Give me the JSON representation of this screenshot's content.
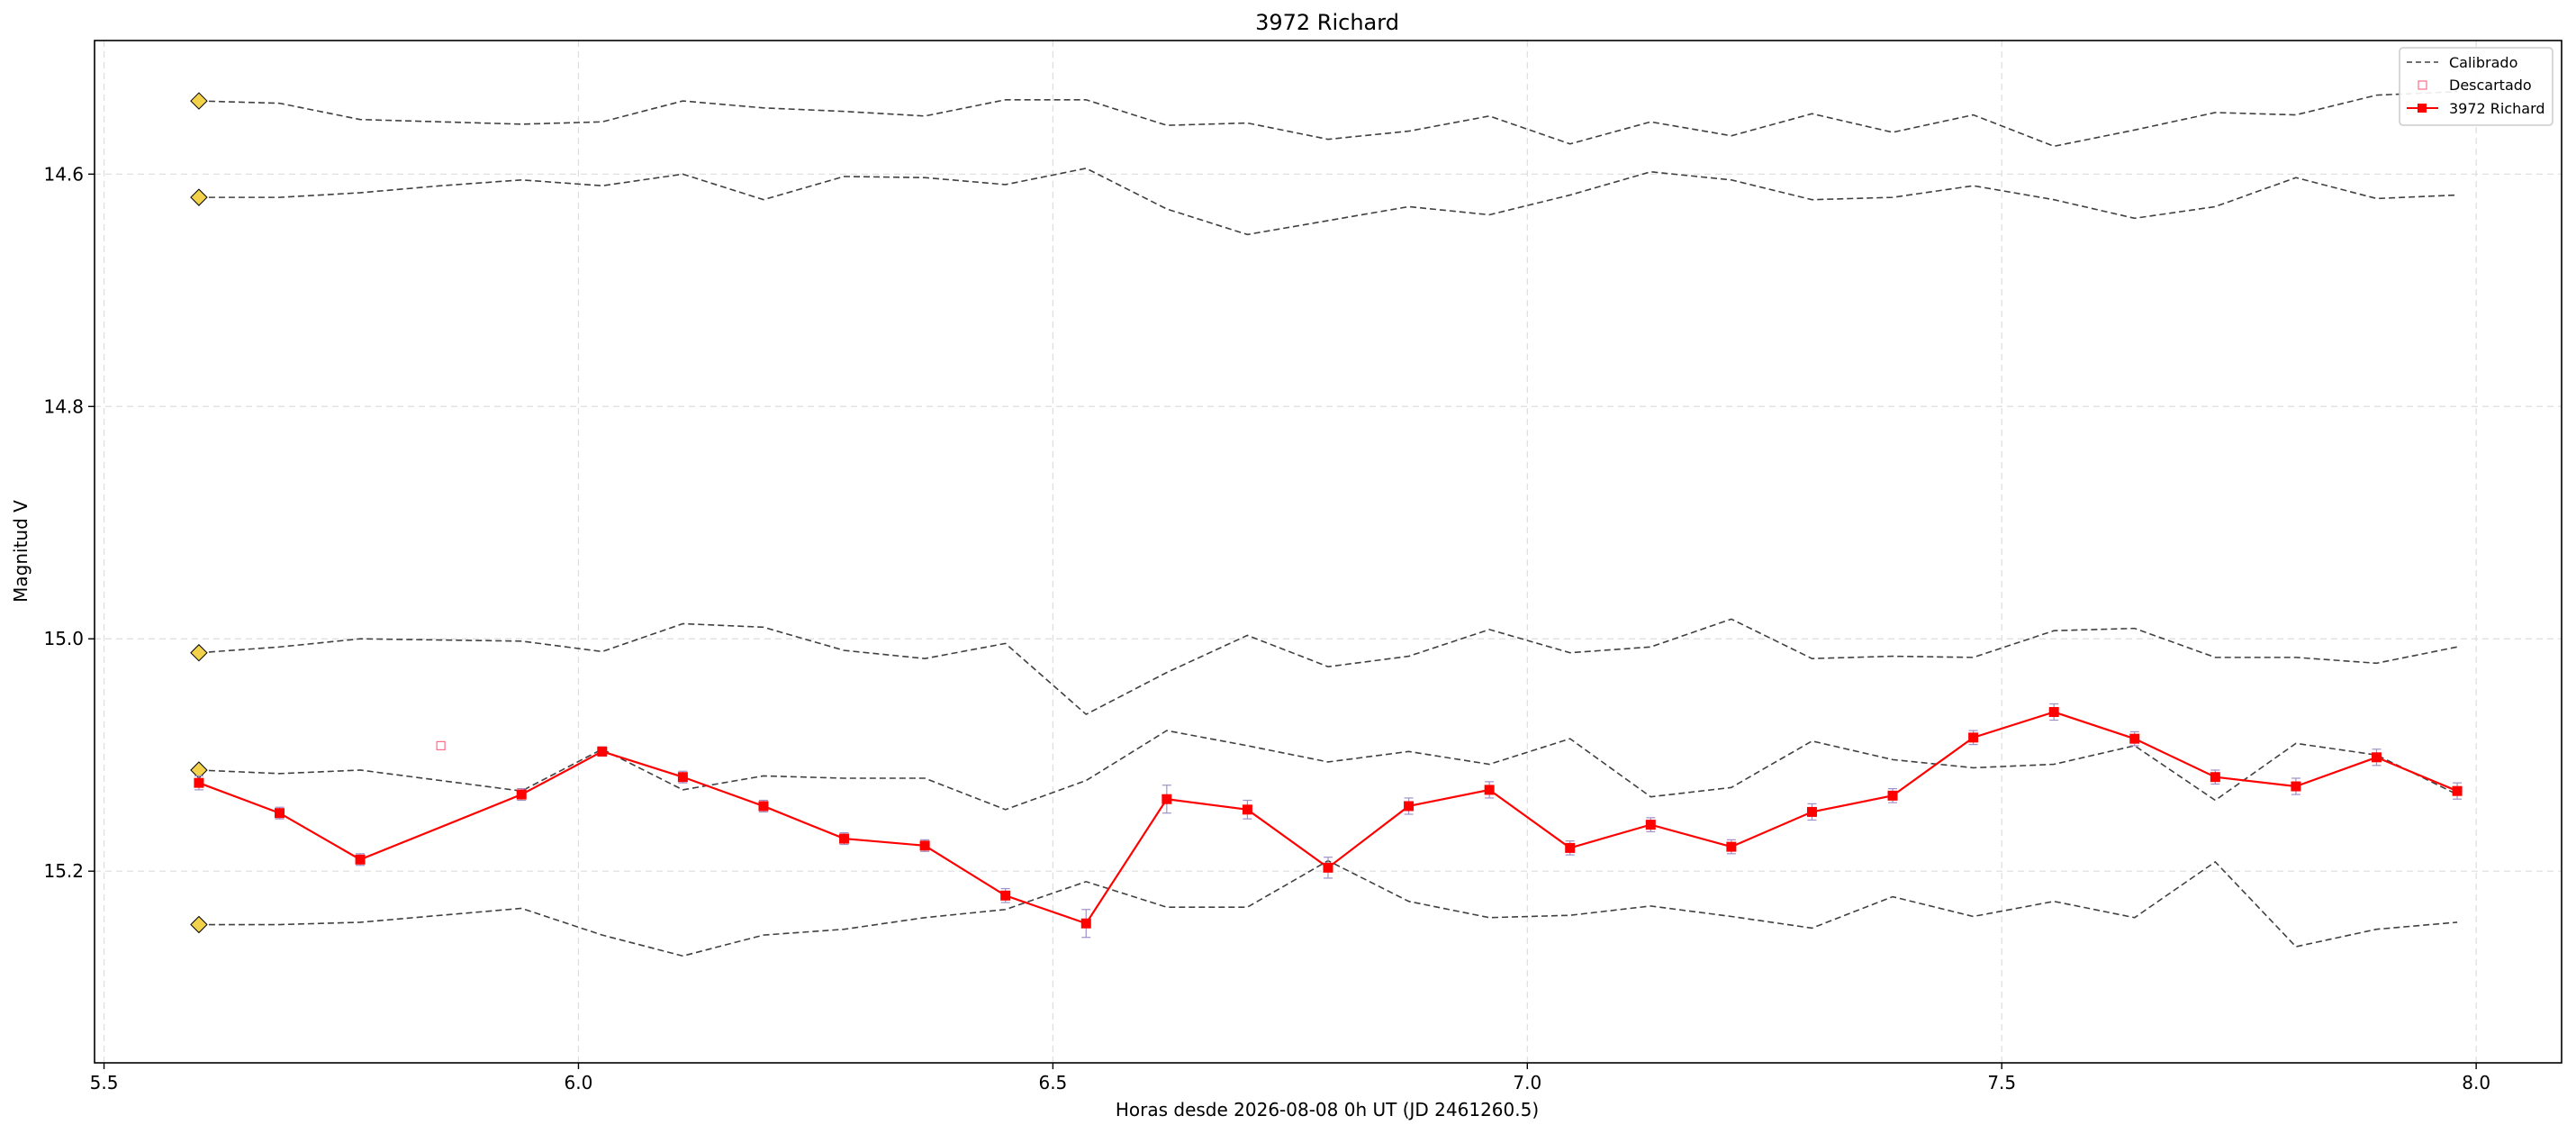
{
  "chart_data": {
    "type": "line",
    "title": "3972 Richard",
    "xlabel": "Horas desde 2026-08-08 0h UT (JD 2461260.5)",
    "ylabel": "Magnitud V",
    "xlim": [
      5.49,
      8.09
    ],
    "ylim": [
      15.365,
      14.485
    ],
    "y_inverted": true,
    "grid": true,
    "legend_position": "top-right",
    "xticks": [
      5.5,
      6.0,
      6.5,
      7.0,
      7.5,
      8.0
    ],
    "xtick_labels": [
      "5.5",
      "6.0",
      "6.5",
      "7.0",
      "7.5",
      "8.0"
    ],
    "yticks": [
      14.6,
      14.8,
      15.0,
      15.2
    ],
    "ytick_labels": [
      "14.6",
      "14.8",
      "15.0",
      "15.2"
    ],
    "legend": [
      {
        "label": "Calibrado",
        "style": "dashed-line",
        "color": "#404040"
      },
      {
        "label": "Descartado",
        "style": "open-square",
        "color": "#ff6b8a"
      },
      {
        "label": "3972 Richard",
        "style": "line-square",
        "color": "#ff0000"
      }
    ],
    "x": [
      5.6,
      5.685,
      5.77,
      5.855,
      5.94,
      6.025,
      6.11,
      6.195,
      6.28,
      6.365,
      6.45,
      6.535,
      6.62,
      6.705,
      6.79,
      6.875,
      6.96,
      7.045,
      7.13,
      7.215,
      7.3,
      7.385,
      7.47,
      7.555,
      7.64,
      7.725,
      7.81,
      7.895,
      7.98
    ],
    "series": [
      {
        "role": "comparison",
        "marker_x": 5.6,
        "marker_y": 14.537,
        "values": [
          14.537,
          14.539,
          14.553,
          14.555,
          14.557,
          14.555,
          14.537,
          14.543,
          14.546,
          14.55,
          14.536,
          14.536,
          14.558,
          14.556,
          14.57,
          14.563,
          14.55,
          14.574,
          14.555,
          14.567,
          14.548,
          14.564,
          14.549,
          14.576,
          14.562,
          14.547,
          14.549,
          14.532,
          14.529
        ]
      },
      {
        "role": "comparison",
        "marker_x": 5.6,
        "marker_y": 14.62,
        "values": [
          14.62,
          14.62,
          14.616,
          14.61,
          14.605,
          14.61,
          14.6,
          14.622,
          14.602,
          14.603,
          14.609,
          14.595,
          14.63,
          14.652,
          14.64,
          14.628,
          14.635,
          14.618,
          14.598,
          14.605,
          14.622,
          14.62,
          14.61,
          14.622,
          14.638,
          14.628,
          14.603,
          14.621,
          14.618
        ]
      },
      {
        "role": "comparison",
        "marker_x": 5.6,
        "marker_y": 15.012,
        "values": [
          15.012,
          15.007,
          15.0,
          15.001,
          15.002,
          15.011,
          14.987,
          14.99,
          15.01,
          15.017,
          15.004,
          15.065,
          15.029,
          14.997,
          15.024,
          15.015,
          14.992,
          15.012,
          15.007,
          14.983,
          15.017,
          15.015,
          15.016,
          14.993,
          14.991,
          15.016,
          15.016,
          15.021,
          15.007
        ]
      },
      {
        "role": "comparison",
        "marker_x": 5.6,
        "marker_y": 15.113,
        "values": [
          15.113,
          15.116,
          15.113,
          15.122,
          15.131,
          15.095,
          15.13,
          15.118,
          15.12,
          15.12,
          15.147,
          15.122,
          15.079,
          15.092,
          15.106,
          15.097,
          15.108,
          15.086,
          15.136,
          15.128,
          15.088,
          15.104,
          15.111,
          15.108,
          15.092,
          15.139,
          15.09,
          15.1,
          15.134
        ]
      },
      {
        "role": "comparison",
        "marker_x": 5.6,
        "marker_y": 15.246,
        "values": [
          15.246,
          15.246,
          15.244,
          15.238,
          15.232,
          15.255,
          15.273,
          15.255,
          15.25,
          15.24,
          15.233,
          15.209,
          15.231,
          15.231,
          15.191,
          15.226,
          15.24,
          15.238,
          15.23,
          15.239,
          15.249,
          15.222,
          15.239,
          15.226,
          15.24,
          15.192,
          15.265,
          15.25,
          15.244
        ]
      },
      {
        "role": "target",
        "name": "3972 Richard",
        "values": [
          15.124,
          15.15,
          15.19,
          null,
          15.134,
          15.097,
          15.119,
          15.144,
          15.172,
          15.178,
          15.221,
          15.245,
          15.138,
          15.147,
          15.197,
          15.144,
          15.13,
          15.18,
          15.16,
          15.179,
          15.149,
          15.135,
          15.085,
          15.063,
          15.086,
          15.119,
          15.127,
          15.102,
          15.131
        ],
        "errors": [
          0.006,
          0.005,
          0.005,
          null,
          0.005,
          0.004,
          0.005,
          0.005,
          0.005,
          0.005,
          0.006,
          0.012,
          0.012,
          0.008,
          0.009,
          0.007,
          0.007,
          0.006,
          0.006,
          0.006,
          0.007,
          0.006,
          0.006,
          0.007,
          0.006,
          0.006,
          0.007,
          0.007,
          0.007
        ]
      },
      {
        "role": "discarded",
        "name": "Descartado",
        "points": [
          {
            "x": 5.855,
            "y": 15.092
          }
        ]
      }
    ]
  }
}
